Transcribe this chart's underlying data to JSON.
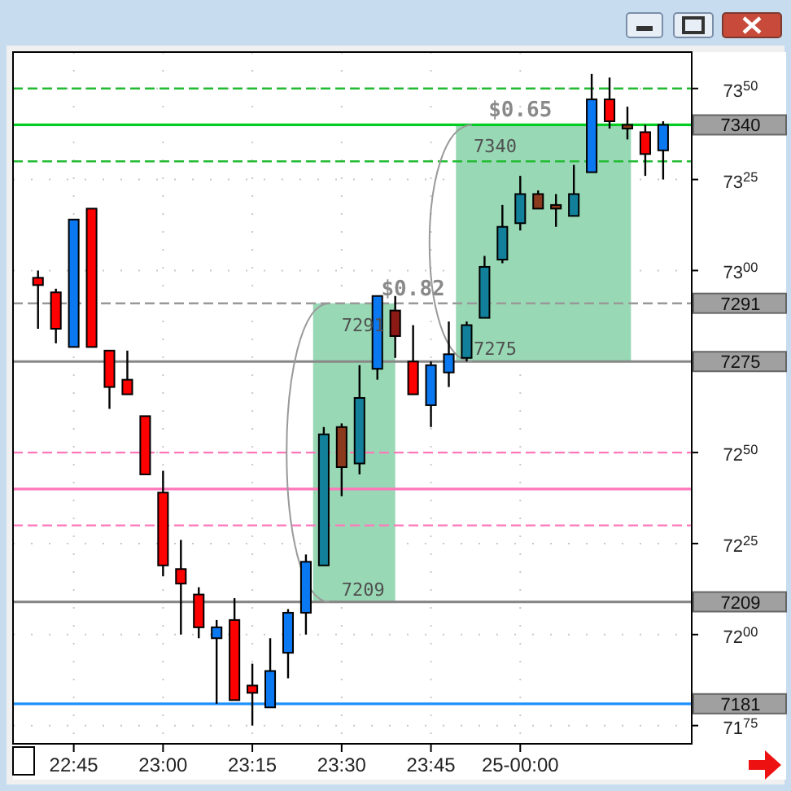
{
  "chart_data": {
    "type": "candlestick",
    "x": [
      22.65,
      22.7,
      22.75,
      22.8,
      22.85,
      22.9,
      22.95,
      23,
      23.05,
      23.1,
      23.15,
      23.2,
      23.25,
      23.3,
      23.35,
      23.4,
      23.45,
      23.5,
      23.55,
      23.6,
      23.65,
      23.7,
      23.75,
      23.8,
      23.85,
      23.9,
      23.95,
      24,
      24.05,
      24.1,
      24.15,
      24.2,
      24.25,
      24.3,
      24.35,
      24.4
    ],
    "ohlc": [
      [
        7298,
        7300,
        7284,
        7296
      ],
      [
        7294,
        7295,
        7280,
        7284
      ],
      [
        7279,
        7314,
        7279,
        7314
      ],
      [
        7317,
        7317,
        7279,
        7279
      ],
      [
        7278,
        7278,
        7262,
        7268
      ],
      [
        7270,
        7278,
        7266,
        7266
      ],
      [
        7260,
        7260,
        7244,
        7244
      ],
      [
        7239,
        7245,
        7216,
        7219
      ],
      [
        7218,
        7226,
        7200,
        7214
      ],
      [
        7211,
        7213,
        7199,
        7202
      ],
      [
        7199,
        7204,
        7181,
        7202
      ],
      [
        7204,
        7210,
        7182,
        7182
      ],
      [
        7186,
        7192,
        7175,
        7184
      ],
      [
        7180,
        7199,
        7180,
        7190
      ],
      [
        7195,
        7207,
        7188,
        7206
      ],
      [
        7206,
        7222,
        7200,
        7220
      ],
      [
        7219,
        7257,
        7219,
        7255
      ],
      [
        7257,
        7258,
        7238,
        7246
      ],
      [
        7247,
        7274,
        7244,
        7265
      ],
      [
        7273,
        7293,
        7270,
        7293
      ],
      [
        7289,
        7293,
        7276,
        7282
      ],
      [
        7275,
        7285,
        7266,
        7266
      ],
      [
        7263,
        7275,
        7257,
        7274
      ],
      [
        7272,
        7286,
        7268,
        7277
      ],
      [
        7276,
        7286,
        7275,
        7285
      ],
      [
        7287,
        7304,
        7287,
        7301
      ],
      [
        7303,
        7318,
        7302,
        7312
      ],
      [
        7313,
        7326,
        7311,
        7321
      ],
      [
        7321,
        7322,
        7317,
        7317
      ],
      [
        7318,
        7321,
        7312,
        7317
      ],
      [
        7315,
        7329,
        7315,
        7321
      ],
      [
        7327,
        7354,
        7327,
        7347
      ],
      [
        7347,
        7353,
        7339,
        7341
      ],
      [
        7340,
        7345,
        7336,
        7339
      ],
      [
        7338,
        7340,
        7326,
        7332
      ],
      [
        7333,
        7341,
        7325,
        7340
      ]
    ],
    "colors": [
      "#ff0000",
      "#ff0000",
      "#0a78f0",
      "#ff0000",
      "#ff0000",
      "#ff0000",
      "#ff0000",
      "#ff0000",
      "#ff0000",
      "#ff0000",
      "#0a78f0",
      "#ff0000",
      "#ff0000",
      "#0a78f0",
      "#0a78f0",
      "#0a78f0",
      "#12809a",
      "#8b3a1e",
      "#12809a",
      "#0a78f0",
      "#8b1a14",
      "#ff0000",
      "#0a78f0",
      "#0a78f0",
      "#12809a",
      "#12809a",
      "#12809a",
      "#12809a",
      "#8b3a1e",
      "#8b3a1e",
      "#12809a",
      "#0a78f0",
      "#ff0000",
      "#8b3a1e",
      "#ff0000",
      "#0a78f0"
    ],
    "xlim": [
      22.58,
      24.48
    ],
    "xticks": [
      {
        "value": 22.75,
        "label": "22:45"
      },
      {
        "value": 23,
        "label": "23:00"
      },
      {
        "value": 23.25,
        "label": "23:15"
      },
      {
        "value": 23.5,
        "label": "23:30"
      },
      {
        "value": 23.75,
        "label": "23:45"
      },
      {
        "value": 24,
        "label": "25-00:00"
      }
    ],
    "ylim": [
      7170,
      7360
    ],
    "yticks": [
      7175,
      7200,
      7225,
      7250,
      7300,
      7325,
      7350
    ],
    "grid": true,
    "ref_lines": [
      {
        "axis": "y",
        "value": 7350,
        "color": "#22bb33",
        "line_style": "dashed"
      },
      {
        "axis": "y",
        "value": 7340,
        "label": "7340",
        "color": "#00cc22",
        "line_style": "solid"
      },
      {
        "axis": "y",
        "value": 7330,
        "color": "#22bb33",
        "line_style": "dashed"
      },
      {
        "axis": "y",
        "value": 7291,
        "label": "7291",
        "color": "#999999",
        "line_style": "dashed"
      },
      {
        "axis": "y",
        "value": 7275,
        "label": "7275",
        "color": "#888888",
        "line_style": "solid"
      },
      {
        "axis": "y",
        "value": 7250,
        "color": "#ff77bb",
        "line_style": "dashed"
      },
      {
        "axis": "y",
        "value": 7240,
        "color": "#ff77bb",
        "line_style": "solid"
      },
      {
        "axis": "y",
        "value": 7230,
        "color": "#ff77bb",
        "line_style": "dashed"
      },
      {
        "axis": "y",
        "value": 7209,
        "label": "7209",
        "color": "#888888",
        "line_style": "solid"
      },
      {
        "axis": "y",
        "value": 7181,
        "label": "7181",
        "color": "#1e90ff",
        "line_style": "solid"
      }
    ],
    "bands": [
      {
        "axis": "x",
        "from": 23.42,
        "to": 23.65,
        "color": "#98d8b4"
      },
      {
        "axis": "x",
        "from": 23.82,
        "to": 24.31,
        "color": "#98d8b4"
      }
    ],
    "annotations": [
      {
        "text": "7209",
        "x": 23.56,
        "y": 7209
      },
      {
        "text": "7291",
        "x": 23.56,
        "y": 7291
      },
      {
        "text": "$0.82",
        "x": 23.7,
        "y": 7291
      },
      {
        "text": "7275",
        "x": 23.93,
        "y": 7275
      },
      {
        "text": "7340",
        "x": 23.93,
        "y": 7340
      },
      {
        "text": "$0.65",
        "x": 24.0,
        "y": 7340
      }
    ]
  }
}
